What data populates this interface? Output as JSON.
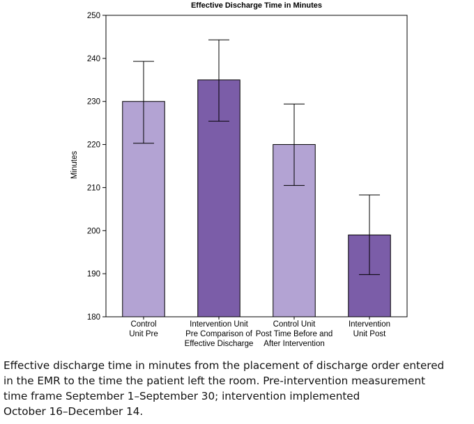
{
  "chart_data": {
    "type": "bar",
    "title": "Effective Discharge Time in Minutes",
    "xlabel": "",
    "ylabel": "Minutes",
    "ylim": [
      180,
      250
    ],
    "yticks": [
      180,
      190,
      200,
      210,
      220,
      230,
      240,
      250
    ],
    "categories": [
      [
        "Control",
        "Unit Pre"
      ],
      [
        "Intervention Unit",
        "Pre Comparison of",
        "Effective Discharge"
      ],
      [
        "Control Unit",
        "Post Time Before and",
        "After Intervention"
      ],
      [
        "Intervention",
        "Unit Post"
      ]
    ],
    "values": [
      230,
      235,
      220,
      199
    ],
    "error_low": [
      220.3,
      225.4,
      210.5,
      189.8
    ],
    "error_high": [
      239.3,
      244.3,
      229.4,
      208.3
    ],
    "bar_colors": [
      "#b3a3d3",
      "#7b5da8",
      "#b3a3d3",
      "#7b5da8"
    ],
    "grid": false
  },
  "caption_lines": [
    "Effective discharge time in minutes from the placement of discharge order entered",
    "in the EMR to the time the patient left the room. Pre-intervention measurement",
    "time frame September 1–September 30; intervention implemented",
    "October 16–December 14."
  ]
}
